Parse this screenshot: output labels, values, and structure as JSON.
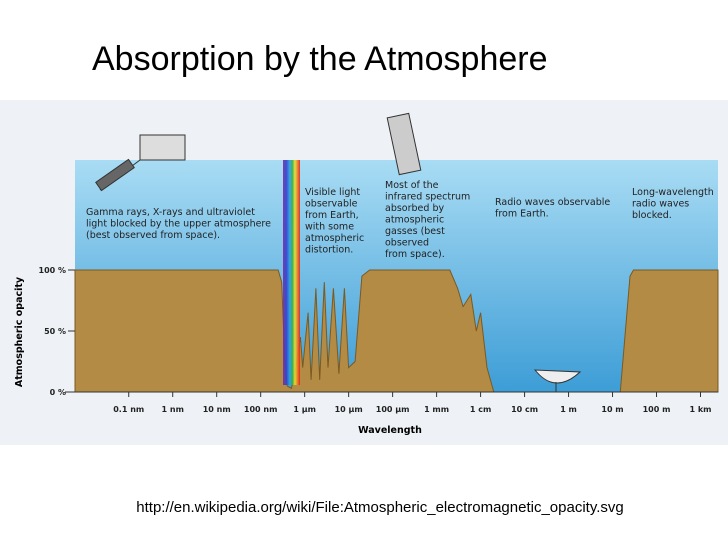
{
  "page_title": "Absorption by the Atmosphere",
  "caption": "http://en.wikipedia.org/wiki/File:Atmospheric_electromagnetic_opacity.svg",
  "chart_data": {
    "type": "area",
    "x_label": "Wavelength",
    "y_label": "Atmospheric opacity",
    "xscale": "log",
    "color": "#b38b45",
    "x": [
      6e-12,
      2.5e-07,
      3e-07,
      3.5e-07,
      4e-07,
      5e-07,
      6e-07,
      8e-07,
      9e-07,
      1.2e-06,
      1.4e-06,
      1.8e-06,
      2.2e-06,
      2.8e-06,
      3.4e-06,
      4.5e-06,
      6e-06,
      8e-06,
      1e-05,
      1.4e-05,
      2e-05,
      3e-05,
      0.002,
      0.003,
      0.004,
      0.006,
      0.008,
      0.01,
      0.014,
      0.02,
      15,
      25,
      30,
      2500
    ],
    "values": [
      100,
      100,
      90,
      30,
      5,
      3,
      15,
      45,
      20,
      65,
      10,
      85,
      10,
      90,
      20,
      85,
      15,
      85,
      20,
      25,
      95,
      100,
      100,
      85,
      70,
      80,
      50,
      65,
      20,
      0,
      0,
      95,
      100,
      100
    ],
    "xlim": [
      6e-12,
      2500
    ],
    "ylim": [
      0,
      100
    ],
    "xticks": [
      {
        "value": 1e-10,
        "label": "0.1 nm"
      },
      {
        "value": 1e-09,
        "label": "1 nm"
      },
      {
        "value": 1e-08,
        "label": "10 nm"
      },
      {
        "value": 1e-07,
        "label": "100 nm"
      },
      {
        "value": 1e-06,
        "label": "1 µm"
      },
      {
        "value": 1e-05,
        "label": "10 µm"
      },
      {
        "value": 0.0001,
        "label": "100 µm"
      },
      {
        "value": 0.001,
        "label": "1 mm"
      },
      {
        "value": 0.01,
        "label": "1 cm"
      },
      {
        "value": 0.1,
        "label": "10 cm"
      },
      {
        "value": 1,
        "label": "1 m"
      },
      {
        "value": 10,
        "label": "10 m"
      },
      {
        "value": 100,
        "label": "100 m"
      },
      {
        "value": 1000,
        "label": "1 km"
      }
    ],
    "yticks": [
      {
        "value": 0,
        "label": "0 %"
      },
      {
        "value": 50,
        "label": "50 %"
      },
      {
        "value": 100,
        "label": "100 %"
      }
    ],
    "annotations": [
      {
        "lines": [
          "Gamma rays, X-rays and ultraviolet",
          "light blocked by the upper atmosphere",
          "(best observed from space)."
        ]
      },
      {
        "lines": [
          "Visible light",
          "observable",
          "from Earth,",
          "with some",
          "atmospheric",
          "distortion."
        ]
      },
      {
        "lines": [
          "Most of the",
          "infrared spectrum",
          "absorbed by",
          "atmospheric",
          "gasses (best",
          "observed",
          "from space)."
        ]
      },
      {
        "lines": [
          "Radio waves observable",
          "from Earth."
        ]
      },
      {
        "lines": [
          "Long-wavelength",
          "radio waves",
          "blocked."
        ]
      }
    ]
  }
}
